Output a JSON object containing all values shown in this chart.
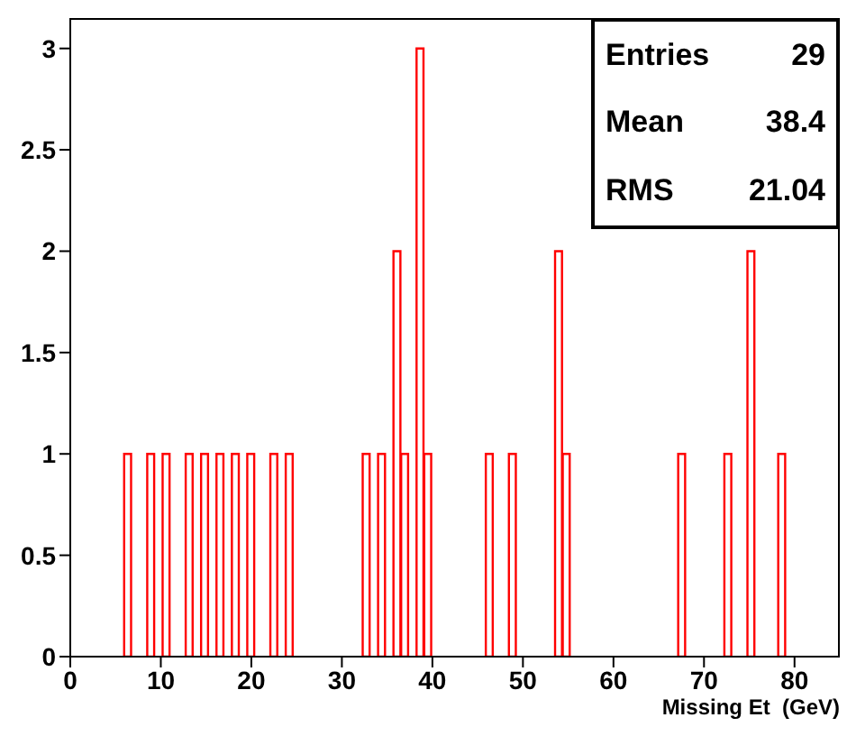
{
  "chart_data": {
    "type": "histogram",
    "xlabel": "Missing Et  (GeV)",
    "bins": [
      0,
      0.85,
      1.7,
      2.55,
      3.4,
      4.25,
      5.1,
      5.95,
      6.8,
      7.65,
      8.5,
      9.35,
      10.2,
      11.05,
      11.9,
      12.75,
      13.6,
      14.45,
      15.3,
      16.15,
      17,
      17.85,
      18.7,
      19.55,
      20.4,
      21.25,
      22.1,
      22.95,
      23.8,
      24.65,
      25.5,
      26.35,
      27.2,
      28.05,
      28.9,
      29.75,
      30.6,
      31.45,
      32.3,
      33.15,
      34,
      34.85,
      35.7,
      36.55,
      37.4,
      38.25,
      39.1,
      39.95,
      40.8,
      41.65,
      42.5,
      43.35,
      44.2,
      45.05,
      45.9,
      46.75,
      47.6,
      48.45,
      49.3,
      50.15,
      51,
      51.85,
      52.7,
      53.55,
      54.4,
      55.25,
      56.1,
      56.95,
      57.8,
      58.65,
      59.5,
      60.35,
      61.2,
      62.05,
      62.9,
      63.75,
      64.6,
      65.45,
      66.3,
      67.15,
      68,
      68.85,
      69.7,
      70.55,
      71.4,
      72.25,
      73.1,
      73.95,
      74.8,
      75.65,
      76.5,
      77.35,
      78.2,
      79.05,
      79.9,
      80.75,
      81.6,
      82.45,
      83.3,
      84.15,
      85
    ],
    "values": [
      0,
      0,
      0,
      0,
      0,
      0,
      0,
      1,
      0,
      0,
      1,
      0,
      1,
      0,
      0,
      1,
      0,
      1,
      0,
      1,
      0,
      1,
      0,
      1,
      0,
      0,
      1,
      0,
      1,
      0,
      0,
      0,
      0,
      0,
      0,
      0,
      0,
      0,
      1,
      0,
      1,
      0,
      2,
      1,
      0,
      3,
      1,
      0,
      0,
      0,
      0,
      0,
      0,
      0,
      1,
      0,
      0,
      1,
      0,
      0,
      0,
      0,
      0,
      2,
      1,
      0,
      0,
      0,
      0,
      0,
      0,
      0,
      0,
      0,
      0,
      0,
      0,
      0,
      0,
      1,
      0,
      0,
      0,
      0,
      0,
      1,
      0,
      0,
      2,
      0,
      0,
      0,
      1,
      0,
      0,
      0,
      0,
      0,
      0,
      0
    ],
    "color": "#ff0000",
    "xlim": [
      0,
      85
    ],
    "xticks": [
      0,
      10,
      20,
      30,
      40,
      50,
      60,
      70,
      80
    ],
    "ylim": [
      0,
      3.15
    ],
    "yticks": [
      0,
      0.5,
      1,
      1.5,
      2,
      2.5,
      3
    ],
    "annotations": [
      "Entries",
      "29",
      "Mean",
      "38.4",
      "RMS",
      "21.04"
    ]
  }
}
